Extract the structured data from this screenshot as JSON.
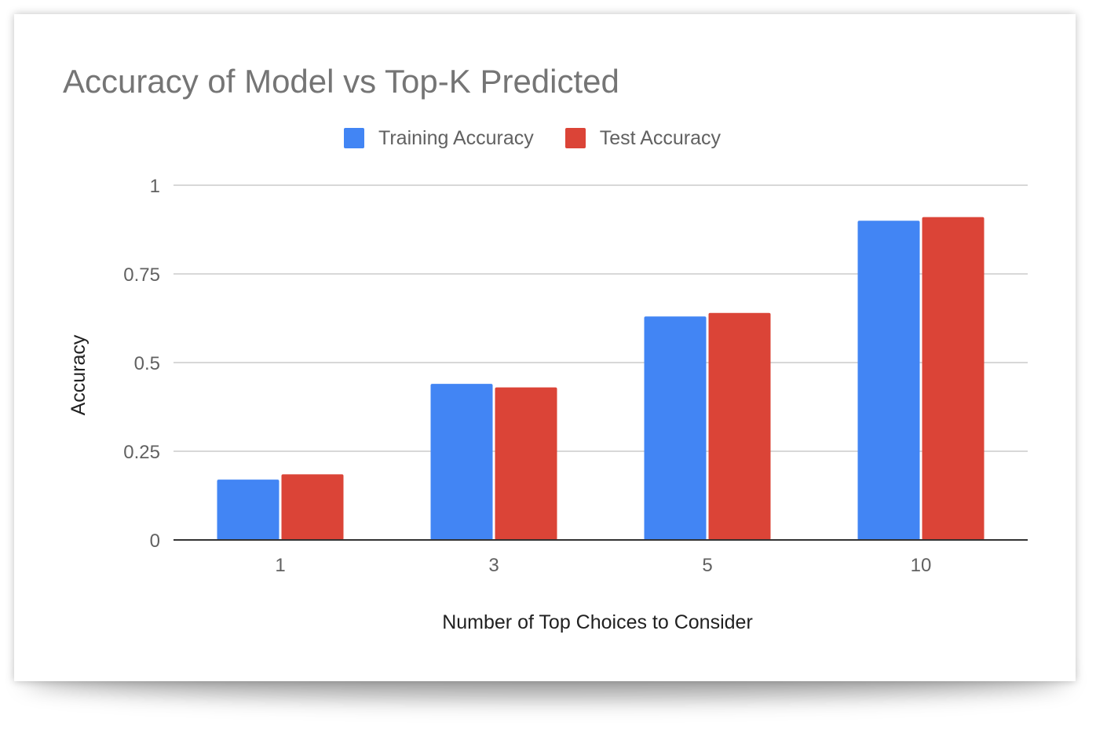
{
  "chart_data": {
    "type": "bar",
    "title": "Accuracy of Model vs Top-K Predicted",
    "xlabel": "Number of Top Choices to Consider",
    "ylabel": "Accuracy",
    "categories": [
      "1",
      "3",
      "5",
      "10"
    ],
    "series": [
      {
        "name": "Training Accuracy",
        "color": "#4285f4",
        "values": [
          0.17,
          0.44,
          0.63,
          0.9
        ]
      },
      {
        "name": "Test Accuracy",
        "color": "#db4437",
        "values": [
          0.185,
          0.43,
          0.64,
          0.91
        ]
      }
    ],
    "ylim": [
      0,
      1
    ],
    "yticks": [
      0,
      0.25,
      0.5,
      0.75,
      1
    ],
    "ytick_labels": [
      "0",
      "0.25",
      "0.5",
      "0.75",
      "1"
    ],
    "grid": true,
    "legend": "top"
  }
}
